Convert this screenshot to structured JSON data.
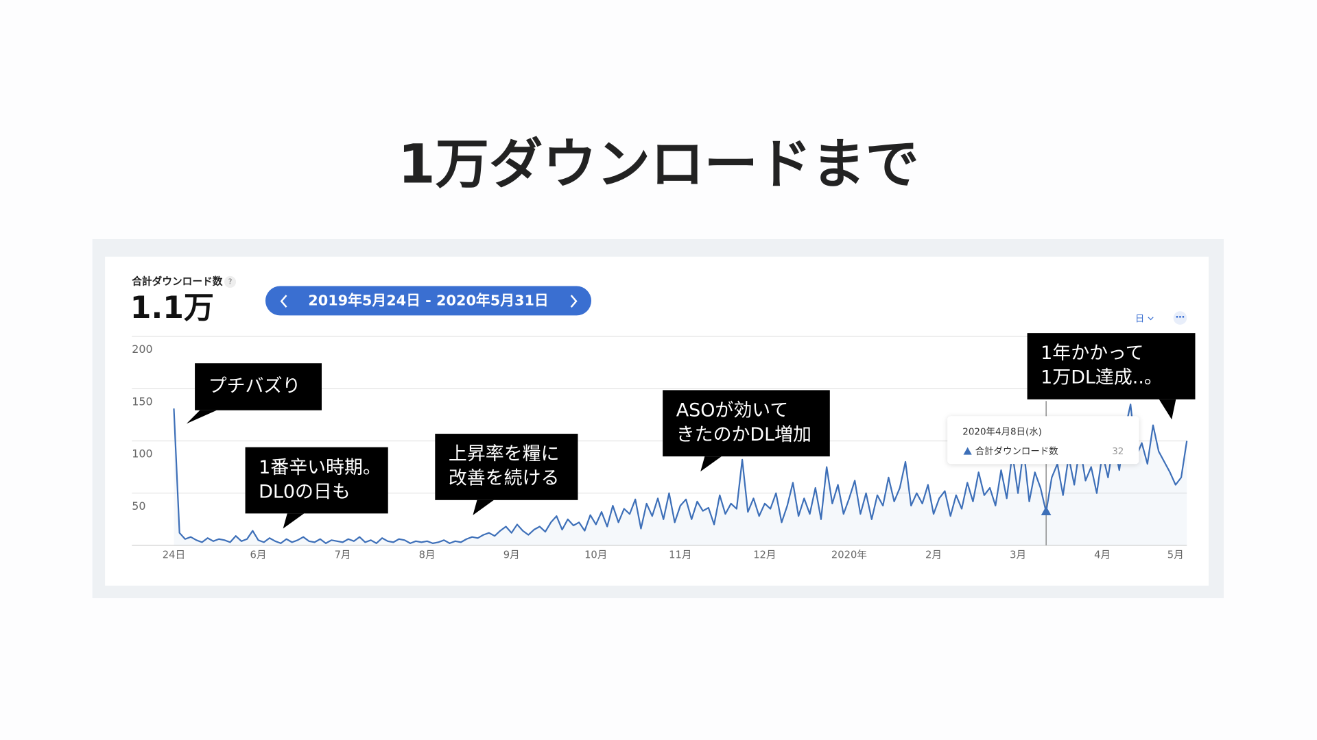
{
  "page_title": "1万ダウンロードまで",
  "chart_data": {
    "type": "line",
    "header": {
      "help": "?",
      "total": "1.1万",
      "date_range": "2019年5月24日 - 2020年5月31日",
      "granularity": "日",
      "more": "⋯"
    },
    "tooltip_date": "2020年4月8日(水)",
    "annotations": [
      {
        "lines": [
          "プチバズり"
        ]
      },
      {
        "lines": [
          "1番辛い時期。",
          "DL0の日も"
        ]
      },
      {
        "lines": [
          "上昇率を糧に",
          "改善を続ける"
        ]
      },
      {
        "lines": [
          "ASOが効いて",
          "きたのかDL増加"
        ]
      },
      {
        "lines": [
          "1年かかって",
          "1万DL達成..。"
        ]
      }
    ],
    "categories": [
      "24日",
      null,
      null,
      null,
      null,
      null,
      null,
      null,
      null,
      null,
      null,
      null,
      null,
      null,
      null,
      "6月",
      null,
      null,
      null,
      null,
      null,
      null,
      null,
      null,
      null,
      null,
      null,
      null,
      null,
      null,
      "7月",
      null,
      null,
      null,
      null,
      null,
      null,
      null,
      null,
      null,
      null,
      null,
      null,
      null,
      null,
      "8月",
      null,
      null,
      null,
      null,
      null,
      null,
      null,
      null,
      null,
      null,
      null,
      null,
      null,
      null,
      "9月",
      null,
      null,
      null,
      null,
      null,
      null,
      null,
      null,
      null,
      null,
      null,
      null,
      null,
      null,
      "10月",
      null,
      null,
      null,
      null,
      null,
      null,
      null,
      null,
      null,
      null,
      null,
      null,
      null,
      null,
      "11月",
      null,
      null,
      null,
      null,
      null,
      null,
      null,
      null,
      null,
      null,
      null,
      null,
      null,
      null,
      "12月",
      null,
      null,
      null,
      null,
      null,
      null,
      null,
      null,
      null,
      null,
      null,
      null,
      null,
      null,
      "2020年",
      null,
      null,
      null,
      null,
      null,
      null,
      null,
      null,
      null,
      null,
      null,
      null,
      null,
      null,
      "2月",
      null,
      null,
      null,
      null,
      null,
      null,
      null,
      null,
      null,
      null,
      null,
      null,
      null,
      null,
      "3月",
      null,
      null,
      null,
      null,
      null,
      null,
      null,
      null,
      null,
      null,
      null,
      null,
      null,
      null,
      "4月",
      null,
      null,
      null,
      null,
      null,
      null,
      null,
      null,
      null,
      null,
      null,
      null,
      "5月",
      null,
      null
    ],
    "series": [
      {
        "name": "合計ダウンロード数",
        "color": "#3d6fb8",
        "values": [
          131,
          12,
          6,
          8,
          5,
          3,
          7,
          4,
          6,
          5,
          3,
          9,
          4,
          6,
          14,
          5,
          3,
          7,
          4,
          2,
          6,
          3,
          5,
          8,
          4,
          3,
          6,
          2,
          5,
          4,
          3,
          6,
          4,
          8,
          3,
          5,
          2,
          7,
          4,
          3,
          6,
          5,
          2,
          4,
          3,
          4,
          2,
          3,
          5,
          2,
          4,
          3,
          6,
          8,
          7,
          10,
          12,
          9,
          14,
          18,
          12,
          20,
          14,
          10,
          15,
          18,
          13,
          22,
          28,
          15,
          25,
          19,
          22,
          14,
          29,
          20,
          32,
          18,
          38,
          22,
          35,
          30,
          44,
          16,
          40,
          28,
          45,
          25,
          50,
          22,
          38,
          44,
          25,
          42,
          33,
          36,
          20,
          48,
          30,
          40,
          35,
          82,
          32,
          45,
          28,
          40,
          35,
          50,
          22,
          38,
          60,
          28,
          45,
          30,
          55,
          25,
          75,
          40,
          58,
          30,
          45,
          62,
          30,
          50,
          25,
          48,
          38,
          65,
          42,
          55,
          80,
          38,
          50,
          40,
          58,
          30,
          45,
          52,
          28,
          48,
          35,
          60,
          42,
          70,
          48,
          55,
          38,
          72,
          45,
          88,
          50,
          92,
          42,
          70,
          55,
          32,
          65,
          78,
          48,
          85,
          58,
          95,
          62,
          75,
          50,
          88,
          65,
          100,
          72,
          110,
          135,
          85,
          98,
          78,
          115,
          90,
          80,
          70,
          58,
          65,
          100
        ]
      }
    ],
    "ylim": [
      0,
      200
    ],
    "yticks": [
      50,
      100,
      150,
      200
    ],
    "grid": true
  }
}
